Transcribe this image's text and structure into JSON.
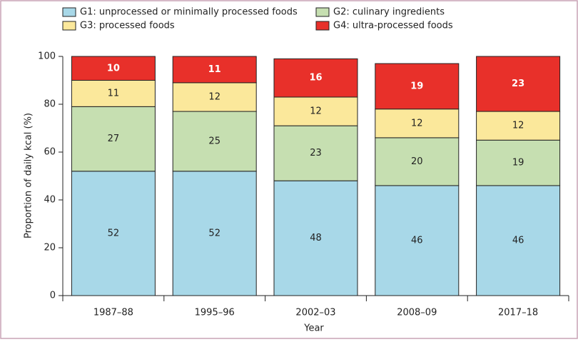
{
  "chart_data": {
    "type": "stacked_bar",
    "x_label": "Year",
    "y_label": "Proportion of daily kcal (%)",
    "categories": [
      "1987–88",
      "1995–96",
      "2002–03",
      "2008–09",
      "2017–18"
    ],
    "series": [
      {
        "name": "G1: unprocessed or minimally processed foods",
        "color": "#a8d8e8",
        "values": [
          52,
          52,
          48,
          46,
          46
        ]
      },
      {
        "name": "G2: culinary ingredients",
        "color": "#c6dfb1",
        "values": [
          27,
          25,
          23,
          20,
          19
        ]
      },
      {
        "name": "G3: processed foods",
        "color": "#fbe89b",
        "values": [
          11,
          12,
          12,
          12,
          12
        ]
      },
      {
        "name": "G4: ultra-processed foods",
        "color": "#e8302a",
        "values": [
          10,
          11,
          16,
          19,
          23
        ]
      }
    ],
    "ylim": [
      0,
      100
    ],
    "yticks": [
      0,
      20,
      40,
      60,
      80,
      100
    ]
  }
}
